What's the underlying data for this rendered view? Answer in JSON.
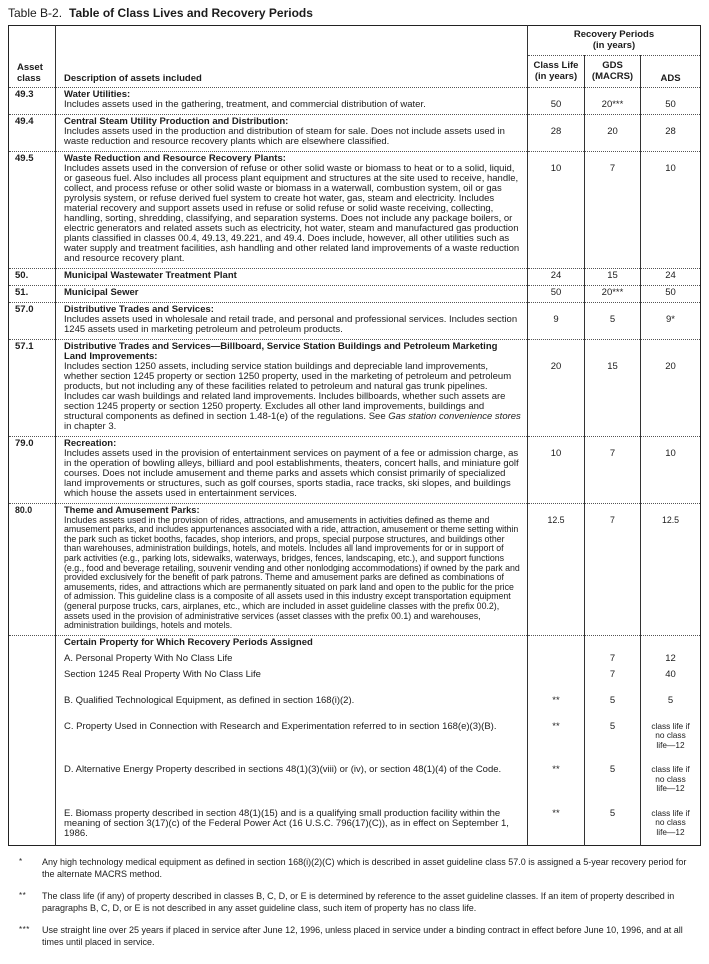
{
  "page": {
    "title_prefix": "Table B-2.",
    "title": "Table of Class Lives and Recovery Periods"
  },
  "table": {
    "header": {
      "asset_class_line1": "Asset",
      "asset_class_line2": "class",
      "description": "Description of assets included",
      "recovery_line1": "Recovery Periods",
      "recovery_line2": "(in years)",
      "class_life_line1": "Class Life",
      "class_life_line2": "(in years)",
      "gds_line1": "GDS",
      "gds_line2": "(MACRS)",
      "ads": "ADS"
    },
    "rows": [
      {
        "asset_class": "49.3",
        "heading": "Water Utilities:",
        "body": [
          {
            "t": "Includes assets used in the gathering, treatment, and commercial distribution of water."
          }
        ],
        "class_life": "50",
        "gds": "20***",
        "ads": "50",
        "value_offset_lines": 1
      },
      {
        "asset_class": "49.4",
        "heading": "Central Steam Utility Production and Distribution:",
        "body": [
          {
            "t": "Includes assets used in the production and distribution of steam for sale. Does not include assets used in waste reduction and resource recovery plants which are elsewhere classified."
          }
        ],
        "class_life": "28",
        "gds": "20",
        "ads": "28",
        "value_offset_lines": 1
      },
      {
        "asset_class": "49.5",
        "heading": "Waste Reduction and Resource Recovery Plants:",
        "body": [
          {
            "t": "Includes assets used in the conversion of refuse or other solid waste or biomass to heat or to a solid, liquid, or gaseous fuel. Also includes all process plant equipment and structures at the site used to receive, handle, collect, and process refuse or other solid waste or biomass in a waterwall, combustion system, oil or gas pyrolysis system, or refuse derived fuel system to create hot water, gas, steam and electricity. Includes material recovery and support assets used in refuse or solid refuse or solid waste receiving, collecting, handling, sorting, shredding, classifying, and separation systems. Does not include any package boilers, or electric generators and related assets such as electricity, hot water, steam and manufactured gas production plants classified in classes 00.4, 49.13, 49.221, and 49.4. Does include, however, all other utilities such as water supply and treatment facilities, ash handling and other related land improvements of a waste reduction and resource recovery plant."
          }
        ],
        "class_life": "10",
        "gds": "7",
        "ads": "10",
        "value_offset_lines": 1
      },
      {
        "asset_class": "50.",
        "heading": "Municipal Wastewater Treatment Plant",
        "body": null,
        "class_life": "24",
        "gds": "15",
        "ads": "24",
        "value_offset_lines": 0
      },
      {
        "asset_class": "51.",
        "heading": "Municipal Sewer",
        "body": null,
        "class_life": "50",
        "gds": "20***",
        "ads": "50",
        "value_offset_lines": 0
      },
      {
        "asset_class": "57.0",
        "heading": "Distributive Trades and Services:",
        "body": [
          {
            "t": "Includes assets used in wholesale and retail trade, and personal and professional services. Includes section 1245 assets used in marketing petroleum and petroleum products."
          }
        ],
        "class_life": "9",
        "gds": "5",
        "ads": "9*",
        "value_offset_lines": 1
      },
      {
        "asset_class": "57.1",
        "heading": "Distributive Trades and Services—Billboard, Service Station Buildings and Petroleum Marketing Land Improvements:",
        "body": [
          {
            "t": "Includes section 1250 assets, including service station buildings and depreciable land improvements, whether section 1245 property or section 1250 property, used in the marketing of petroleum and petroleum products, but not including any of these facilities related to petroleum and natural gas trunk pipelines. Includes car wash buildings and related land improvements. Includes billboards, whether such assets are section 1245 property or section 1250 property. Excludes all other land improvements, buildings and structural components as defined in section 1.48-1(e) of the regulations. See "
          },
          {
            "t": "Gas station convenience stores",
            "i": true
          },
          {
            "t": " in chapter 3."
          }
        ],
        "class_life": "20",
        "gds": "15",
        "ads": "20",
        "value_offset_lines": 2
      },
      {
        "asset_class": "79.0",
        "heading": "Recreation:",
        "body": [
          {
            "t": "Includes assets used in the provision of entertainment services on payment of a fee or admission charge, as in the operation of bowling alleys, billiard and pool establishments, theaters, concert halls, and miniature golf courses. Does not include amusement and theme parks and assets which consist primarily of specialized land improvements or structures, such as golf courses, sports stadia, race tracks, ski slopes, and buildings which house the assets used in entertainment services."
          }
        ],
        "class_life": "10",
        "gds": "7",
        "ads": "10",
        "value_offset_lines": 1
      },
      {
        "asset_class": "80.0",
        "heading": "Theme and Amusement Parks:",
        "body": [
          {
            "t": "Includes assets used in the provision of rides, attractions, and amusements in activities defined as theme and amusement parks, and includes appurtenances associated with a ride, attraction, amusement or theme setting within the park such as ticket booths, facades, shop interiors, and props, special purpose structures, and buildings other than warehouses, administration buildings, hotels, and motels. Includes all land improvements for or in support of park activities (e.g., parking lots, sidewalks, waterways, bridges, fences, landscaping, etc.), and support functions (e.g., food and beverage retailing, souvenir vending and other nonlodging accommodations) if owned by the park and provided exclusively for the benefit of park patrons. Theme and amusement parks are defined as combinations of amusements, rides, and attractions which are permanently situated on park land and open to the public for the price of admission. This guideline class is a composite of all assets used in this industry except transportation equipment (general purpose trucks, cars, airplanes, etc., which are included in asset guideline classes with the prefix 00.2), assets used in the provision of administrative services (asset classes with the prefix 00.1) and warehouses, administration buildings, hotels and motels."
          }
        ],
        "class_life": "12.5",
        "gds": "7",
        "ads": "12.5",
        "value_offset_lines": 1,
        "small": true
      }
    ],
    "special_section": {
      "heading": "Certain Property for Which Recovery Periods Assigned",
      "items": [
        {
          "text": "A. Personal Property With No Class Life",
          "class_life": "",
          "gds": "7",
          "ads": "12",
          "gap": false
        },
        {
          "text": "Section 1245 Real Property With No Class Life",
          "class_life": "",
          "gds": "7",
          "ads": "40",
          "gap": false
        },
        {
          "text": "B. Qualified Technological Equipment, as defined in section 168(i)(2).",
          "class_life": "**",
          "gds": "5",
          "ads": "5",
          "gap": true
        },
        {
          "text": "C. Property Used in Connection with Research and Experimentation referred to in section 168(e)(3)(B).",
          "class_life": "**",
          "gds": "5",
          "ads": [
            "class life if",
            "no class",
            "life—12"
          ],
          "gap": true
        },
        {
          "text": "D. Alternative Energy Property described in sections 48(1)(3)(viii) or (iv), or section 48(1)(4) of the Code.",
          "class_life": "**",
          "gds": "5",
          "ads": [
            "class life if",
            "no class",
            "life—12"
          ],
          "gap": true
        },
        {
          "text": "E. Biomass property described in section 48(1)(15) and is a qualifying small production facility within the meaning of section 3(17)(c) of the Federal Power Act (16 U.S.C. 796(17)(C)), as in effect on September 1, 1986.",
          "class_life": "**",
          "gds": "5",
          "ads": [
            "class life if",
            "no class",
            "life—12"
          ],
          "gap": true
        }
      ]
    }
  },
  "footnotes": [
    {
      "marker": "*",
      "text": "Any high technology medical equipment as defined in section 168(i)(2)(C) which is described in asset guideline class 57.0 is assigned a 5-year recovery period for the alternate MACRS method."
    },
    {
      "marker": "**",
      "text": "The class life (if any) of property described in classes B, C, D, or E is determined by reference to the asset guideline classes. If an item of property described in paragraphs B, C, D, or E is not described in any asset guideline class, such item of property has no class life."
    },
    {
      "marker": "***",
      "text": "Use straight line over 25 years if placed in service after June 12, 1996, unless placed in service under a binding contract in effect before June 10, 1996, and at all times until placed in service."
    }
  ]
}
